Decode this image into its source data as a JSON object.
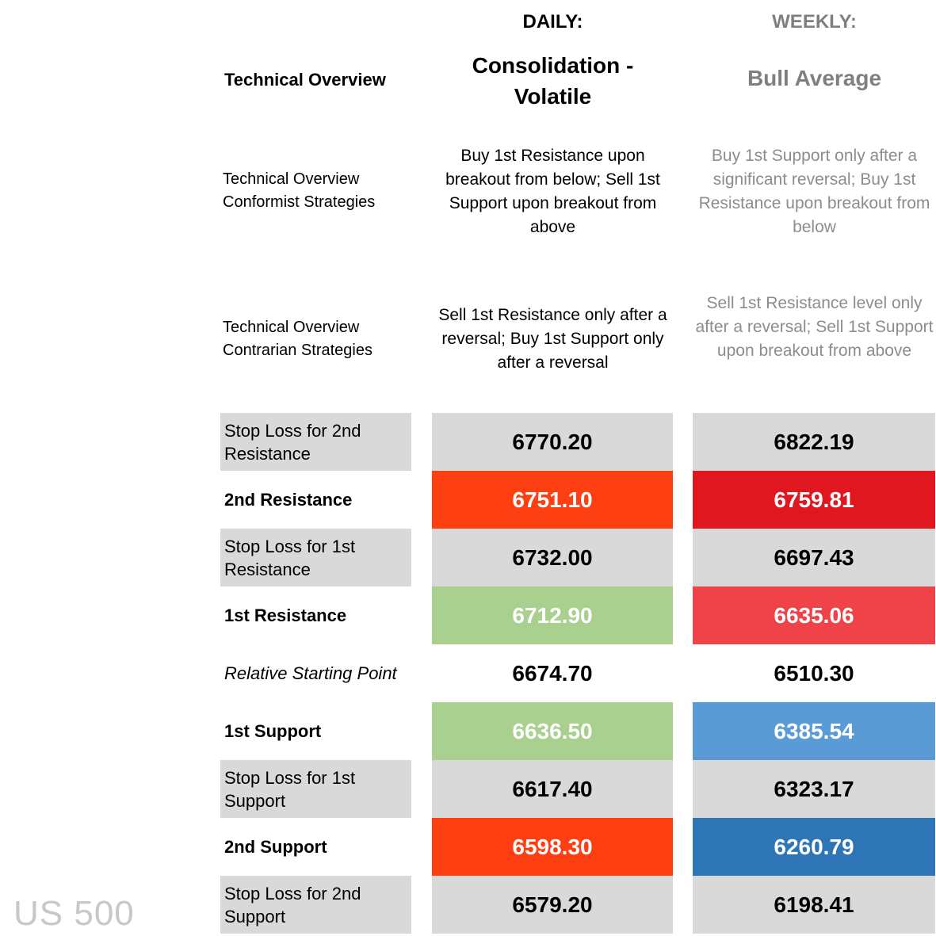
{
  "header": {
    "daily": "DAILY:",
    "weekly": "WEEKLY:"
  },
  "overview": {
    "label": "Technical Overview",
    "daily": "Consolidation - Volatile",
    "weekly": "Bull Average"
  },
  "conformist": {
    "label": "Technical Overview Conformist Strategies",
    "daily": "Buy 1st Resistance upon breakout from below; Sell 1st Support upon breakout from above",
    "weekly": "Buy 1st Support only after a significant reversal; Buy 1st Resistance upon breakout from below"
  },
  "contrarian": {
    "label": "Technical Overview Contrarian Strategies",
    "daily": "Sell 1st Resistance only after a reversal; Buy 1st Support only after a reversal",
    "weekly": "Sell 1st Resistance level only after a reversal; Sell 1st Support upon breakout from above"
  },
  "levels": [
    {
      "label": "Stop Loss for 2nd Resistance",
      "daily": "6770.20",
      "weekly": "6822.19"
    },
    {
      "label": "2nd Resistance",
      "daily": "6751.10",
      "weekly": "6759.81"
    },
    {
      "label": "Stop Loss for 1st Resistance",
      "daily": "6732.00",
      "weekly": "6697.43"
    },
    {
      "label": "1st Resistance",
      "daily": "6712.90",
      "weekly": "6635.06"
    },
    {
      "label": "Relative Starting Point",
      "daily": "6674.70",
      "weekly": "6510.30"
    },
    {
      "label": "1st Support",
      "daily": "6636.50",
      "weekly": "6385.54"
    },
    {
      "label": "Stop Loss for 1st Support",
      "daily": "6617.40",
      "weekly": "6323.17"
    },
    {
      "label": "2nd Support",
      "daily": "6598.30",
      "weekly": "6260.79"
    },
    {
      "label": "Stop Loss for 2nd Support",
      "daily": "6579.20",
      "weekly": "6198.41"
    }
  ],
  "colors": {
    "stop_loss_bg": "#d9d9d9",
    "daily_resistance_bg": "#fe3f12",
    "daily_first_level_bg": "#a9d08e",
    "weekly_2nd_resistance_bg": "#e0171f",
    "weekly_1st_resistance_bg": "#ef4349",
    "weekly_1st_support_bg": "#5b9bd5",
    "weekly_2nd_support_bg": "#2e75b6"
  },
  "watermark": "US 500"
}
